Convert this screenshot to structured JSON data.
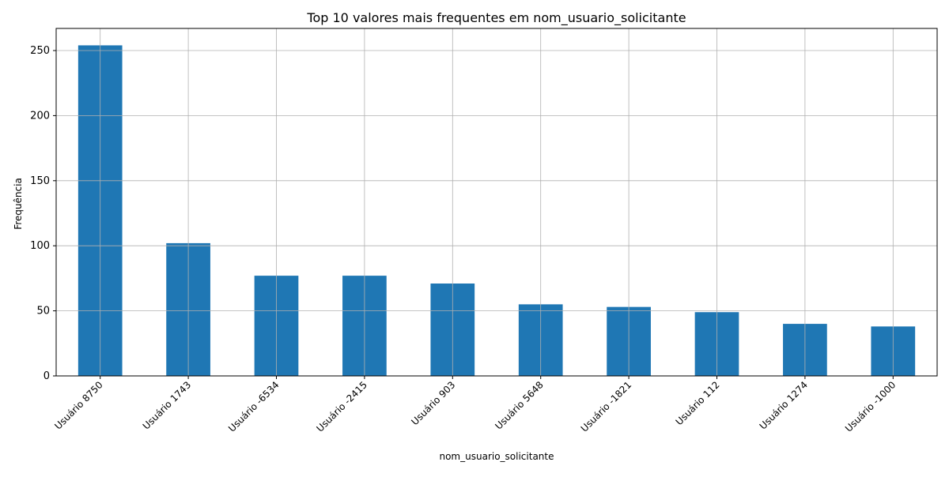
{
  "chart_data": {
    "type": "bar",
    "title": "Top 10 valores mais frequentes em nom_usuario_solicitante",
    "xlabel": "nom_usuario_solicitante",
    "ylabel": "Frequência",
    "categories": [
      "Usuário 8750",
      "Usuário 1743",
      "Usuário -6534",
      "Usuário -2415",
      "Usuário 903",
      "Usuário 5648",
      "Usuário -1821",
      "Usuário 112",
      "Usuário 1274",
      "Usuário -1000"
    ],
    "values": [
      254,
      102,
      77,
      77,
      71,
      55,
      53,
      49,
      40,
      38
    ],
    "ylim": [
      0,
      267
    ],
    "yticks": [
      0,
      50,
      100,
      150,
      200,
      250
    ],
    "grid": true,
    "bar_color": "#1f77b4",
    "grid_color": "#b0b0b0"
  }
}
